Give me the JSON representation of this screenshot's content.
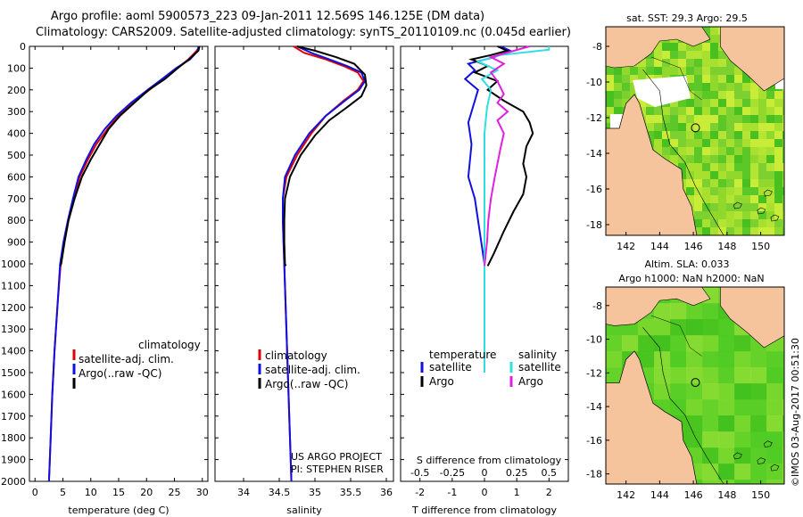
{
  "header": {
    "line1": "Argo profile: aoml 5900573_223 09-Jan-2011 12.569S 146.125E (DM data)",
    "line2": "Climatology: CARS2009. Satellite-adjusted climatology: synTS_20110109.nc (0.045d earlier)"
  },
  "colors": {
    "climatology": "#e00000",
    "satellite": "#1010e0",
    "argo": "#000000",
    "sat_salinity": "#30e0e0",
    "argo_salinity": "#e020e0",
    "land": "#f6c49c",
    "ocean_high": "#30c020",
    "ocean_low": "#c8f040"
  },
  "chart_data": [
    {
      "type": "line",
      "xlabel": "temperature (deg C)",
      "ylabel": "",
      "xlim": [
        -1,
        31
      ],
      "ylim": [
        2100,
        0
      ],
      "xticks": [
        0,
        5,
        10,
        15,
        20,
        25,
        30
      ],
      "yticks": [
        0,
        100,
        200,
        300,
        400,
        500,
        600,
        700,
        800,
        900,
        1000,
        1100,
        1200,
        1300,
        1400,
        1500,
        1600,
        1700,
        1800,
        1900,
        2000
      ],
      "legend": [
        "climatology",
        "satellite-adj. clim.",
        "Argo(..raw -QC)"
      ],
      "legend_position": "bottom-left",
      "series": [
        {
          "name": "climatology",
          "points": [
            [
              29.5,
              0
            ],
            [
              29,
              20
            ],
            [
              27.5,
              60
            ],
            [
              25.5,
              100
            ],
            [
              23,
              150
            ],
            [
              20.5,
              200
            ],
            [
              17.5,
              260
            ],
            [
              15,
              320
            ],
            [
              13,
              380
            ],
            [
              11,
              450
            ],
            [
              9.5,
              520
            ],
            [
              8,
              600
            ],
            [
              7,
              700
            ],
            [
              6,
              800
            ],
            [
              5.2,
              900
            ],
            [
              4.6,
              1000
            ],
            [
              4,
              1200
            ],
            [
              3.5,
              1400
            ],
            [
              3.1,
              1600
            ],
            [
              2.8,
              1800
            ],
            [
              2.5,
              2000
            ],
            [
              2.4,
              2060
            ]
          ]
        },
        {
          "name": "satellite-adj. clim.",
          "points": [
            [
              29.3,
              0
            ],
            [
              29.2,
              20
            ],
            [
              27.8,
              60
            ],
            [
              25.3,
              100
            ],
            [
              22.8,
              150
            ],
            [
              20.2,
              200
            ],
            [
              17.2,
              260
            ],
            [
              14.6,
              320
            ],
            [
              12.5,
              380
            ],
            [
              10.6,
              450
            ],
            [
              9.2,
              520
            ],
            [
              7.8,
              600
            ],
            [
              6.8,
              700
            ],
            [
              5.9,
              800
            ],
            [
              5.1,
              900
            ],
            [
              4.5,
              1000
            ],
            [
              4,
              1200
            ],
            [
              3.5,
              1400
            ],
            [
              3.1,
              1600
            ],
            [
              2.8,
              1800
            ],
            [
              2.5,
              2000
            ],
            [
              2.4,
              2060
            ]
          ]
        },
        {
          "name": "Argo(..raw -QC)",
          "points": [
            [
              29.5,
              0
            ],
            [
              29.3,
              20
            ],
            [
              27.6,
              60
            ],
            [
              25.6,
              100
            ],
            [
              23.3,
              150
            ],
            [
              20.4,
              200
            ],
            [
              17.8,
              260
            ],
            [
              15.2,
              320
            ],
            [
              13.2,
              380
            ],
            [
              11.6,
              450
            ],
            [
              10,
              520
            ],
            [
              8.4,
              600
            ],
            [
              7.1,
              700
            ],
            [
              6,
              800
            ],
            [
              5.3,
              900
            ],
            [
              4.7,
              1000
            ],
            [
              4.5,
              1010
            ]
          ]
        }
      ]
    },
    {
      "type": "line",
      "xlabel": "salinity",
      "ylabel": "",
      "xlim": [
        33.6,
        36.1
      ],
      "ylim": [
        2100,
        0
      ],
      "xticks": [
        34,
        34.5,
        35,
        35.5,
        36
      ],
      "xtick_labels": [
        "34",
        "34.5",
        "35",
        "35.5",
        "36"
      ],
      "legend": [
        "climatology",
        "satellite-adj. clim.",
        "Argo(..raw -QC)"
      ],
      "legend_position": "bottom-left",
      "annotations": [
        "US ARGO PROJECT",
        "PI: STEPHEN RISER"
      ],
      "series": [
        {
          "name": "climatology",
          "points": [
            [
              34.7,
              0
            ],
            [
              34.85,
              30
            ],
            [
              35.15,
              60
            ],
            [
              35.4,
              90
            ],
            [
              35.6,
              120
            ],
            [
              35.68,
              160
            ],
            [
              35.6,
              200
            ],
            [
              35.4,
              250
            ],
            [
              35.15,
              320
            ],
            [
              34.95,
              400
            ],
            [
              34.75,
              500
            ],
            [
              34.6,
              600
            ],
            [
              34.55,
              700
            ],
            [
              34.55,
              800
            ],
            [
              34.56,
              900
            ],
            [
              34.57,
              1000
            ],
            [
              34.59,
              1200
            ],
            [
              34.61,
              1400
            ],
            [
              34.63,
              1600
            ],
            [
              34.65,
              1800
            ],
            [
              34.67,
              2000
            ],
            [
              34.68,
              2060
            ]
          ]
        },
        {
          "name": "satellite-adj. clim.",
          "points": [
            [
              34.75,
              0
            ],
            [
              34.95,
              30
            ],
            [
              35.2,
              60
            ],
            [
              35.45,
              90
            ],
            [
              35.65,
              120
            ],
            [
              35.7,
              160
            ],
            [
              35.62,
              200
            ],
            [
              35.42,
              250
            ],
            [
              35.15,
              320
            ],
            [
              34.92,
              400
            ],
            [
              34.72,
              500
            ],
            [
              34.58,
              600
            ],
            [
              34.55,
              700
            ],
            [
              34.55,
              800
            ],
            [
              34.56,
              900
            ],
            [
              34.57,
              1000
            ],
            [
              34.59,
              1200
            ],
            [
              34.61,
              1400
            ],
            [
              34.63,
              1600
            ],
            [
              34.65,
              1800
            ],
            [
              34.67,
              2000
            ],
            [
              34.68,
              2060
            ]
          ]
        },
        {
          "name": "Argo(..raw -QC)",
          "points": [
            [
              34.75,
              0
            ],
            [
              35,
              20
            ],
            [
              35.3,
              50
            ],
            [
              35.55,
              80
            ],
            [
              35.7,
              130
            ],
            [
              35.72,
              180
            ],
            [
              35.65,
              230
            ],
            [
              35.45,
              280
            ],
            [
              35.2,
              340
            ],
            [
              35,
              410
            ],
            [
              34.8,
              500
            ],
            [
              34.65,
              600
            ],
            [
              34.58,
              700
            ],
            [
              34.57,
              800
            ],
            [
              34.57,
              900
            ],
            [
              34.58,
              1000
            ],
            [
              34.59,
              1010
            ]
          ]
        }
      ]
    },
    {
      "type": "line",
      "xlabel": "T difference from climatology",
      "xlabel2": "S difference from climatology",
      "xlim": [
        -2.6,
        2.6
      ],
      "xlim_salinity": [
        -0.65,
        0.65
      ],
      "ylim": [
        2100,
        0
      ],
      "xticks": [
        -2,
        -1,
        0,
        1,
        2
      ],
      "xticks_salinity": [
        -0.5,
        -0.25,
        0,
        0.25,
        0.5
      ],
      "xtick_labels_salinity": [
        "-0.5",
        "-0.25",
        "0",
        "0.25",
        "0.5"
      ],
      "legend_groups": [
        {
          "title": "temperature",
          "entries": [
            "satellite",
            "Argo"
          ]
        },
        {
          "title": "salinity",
          "entries": [
            "satellite",
            "Argo"
          ]
        }
      ],
      "legend_position": "bottom",
      "series": [
        {
          "name": "temperature satellite",
          "variable": "T",
          "points": [
            [
              0.5,
              0
            ],
            [
              0.8,
              20
            ],
            [
              0.3,
              50
            ],
            [
              -0.5,
              80
            ],
            [
              -0.3,
              110
            ],
            [
              -0.6,
              150
            ],
            [
              -0.2,
              200
            ],
            [
              -0.3,
              250
            ],
            [
              -0.5,
              350
            ],
            [
              -0.4,
              450
            ],
            [
              -0.5,
              600
            ],
            [
              -0.3,
              700
            ],
            [
              -0.2,
              800
            ],
            [
              -0.1,
              900
            ],
            [
              0,
              1000
            ],
            [
              0,
              1500
            ],
            [
              0,
              2060
            ]
          ]
        },
        {
          "name": "temperature Argo",
          "variable": "T",
          "points": [
            [
              0.4,
              0
            ],
            [
              0.7,
              20
            ],
            [
              0.2,
              40
            ],
            [
              -0.4,
              60
            ],
            [
              0.1,
              90
            ],
            [
              -0.3,
              120
            ],
            [
              0.4,
              160
            ],
            [
              0.1,
              200
            ],
            [
              0.6,
              250
            ],
            [
              1.2,
              300
            ],
            [
              1.4,
              350
            ],
            [
              1.5,
              400
            ],
            [
              1.3,
              460
            ],
            [
              1.2,
              540
            ],
            [
              1.3,
              600
            ],
            [
              1.2,
              680
            ],
            [
              0.9,
              760
            ],
            [
              0.6,
              850
            ],
            [
              0.3,
              950
            ],
            [
              0.1,
              1010
            ]
          ]
        },
        {
          "name": "salinity satellite",
          "variable": "S",
          "points": [
            [
              0.5,
              0
            ],
            [
              0.5,
              15
            ],
            [
              0.12,
              40
            ],
            [
              -0.05,
              70
            ],
            [
              0.1,
              110
            ],
            [
              -0.02,
              150
            ],
            [
              0.05,
              200
            ],
            [
              0.02,
              280
            ],
            [
              0,
              400
            ],
            [
              0,
              600
            ],
            [
              0,
              1000
            ],
            [
              0,
              1500
            ],
            [
              0,
              2060
            ]
          ]
        },
        {
          "name": "salinity Argo",
          "variable": "S",
          "points": [
            [
              0.35,
              0
            ],
            [
              0.2,
              25
            ],
            [
              0.05,
              50
            ],
            [
              0.15,
              80
            ],
            [
              0.05,
              120
            ],
            [
              0.1,
              160
            ],
            [
              0.15,
              220
            ],
            [
              0.1,
              260
            ],
            [
              0.18,
              300
            ],
            [
              0.1,
              340
            ],
            [
              0.15,
              400
            ],
            [
              0.12,
              480
            ],
            [
              0.08,
              600
            ],
            [
              0.05,
              700
            ],
            [
              0.03,
              800
            ],
            [
              0.02,
              900
            ],
            [
              0,
              1010
            ]
          ]
        }
      ]
    }
  ],
  "maps": [
    {
      "title": "sat. SST: 29.3 Argo: 29.5",
      "xticks": [
        142,
        144,
        146,
        148,
        150
      ],
      "xtick_labels": [
        "142",
        "144",
        "146",
        "148",
        "150"
      ],
      "yticks": [
        -8,
        -10,
        -12,
        -14,
        -16,
        -18
      ],
      "xlim": [
        140.8,
        151.4
      ],
      "ylim": [
        -18.6,
        -6.9
      ],
      "argo_position": [
        146.125,
        -12.569
      ]
    },
    {
      "title_line1": "Altim. SLA: 0.033",
      "title_line2": "Argo h1000: NaN h2000: NaN",
      "xticks": [
        142,
        144,
        146,
        148,
        150
      ],
      "xtick_labels": [
        "142",
        "144",
        "146",
        "148",
        "150"
      ],
      "yticks": [
        -8,
        -10,
        -12,
        -14,
        -16,
        -18
      ],
      "xlim": [
        140.8,
        151.4
      ],
      "ylim": [
        -18.6,
        -6.9
      ],
      "argo_position": [
        146.125,
        -12.569
      ]
    }
  ],
  "credit": "©IMOS 03-Aug-2017 00:51:30"
}
